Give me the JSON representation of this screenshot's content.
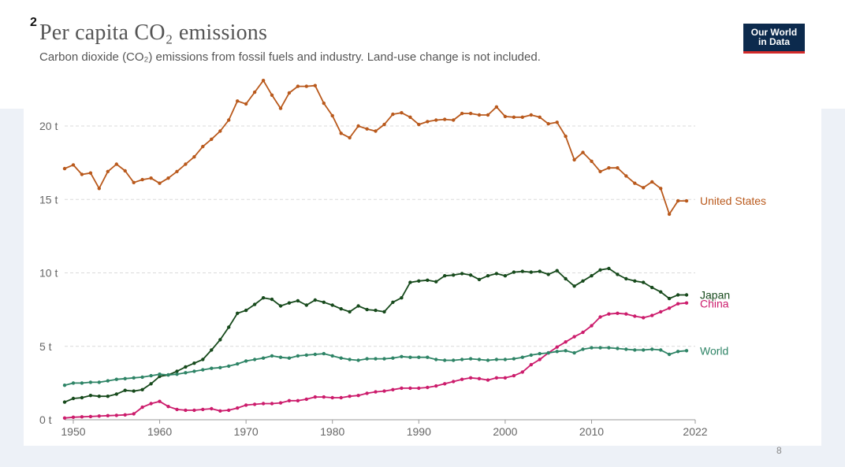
{
  "slide": {
    "number": "2",
    "page": "8"
  },
  "header": {
    "title": "Per capita CO₂ emissions",
    "subtitle": "Carbon dioxide (CO₂) emissions from fossil fuels and industry. Land-use change is not included."
  },
  "logo": {
    "line1": "Our World",
    "line2": "in Data",
    "background": "#0c2a4d",
    "accent": "#d42b2b"
  },
  "chart_data": {
    "type": "line",
    "title": "Per capita CO₂ emissions",
    "subtitle": "Carbon dioxide (CO₂) emissions from fossil fuels and industry. Land-use change is not included.",
    "xlim": [
      1949,
      2022
    ],
    "ylim": [
      0,
      23.5
    ],
    "x_ticks": [
      1950,
      1960,
      1970,
      1980,
      1990,
      2000,
      2010,
      2022
    ],
    "y_ticks": [
      {
        "value": 0,
        "label": "0 t"
      },
      {
        "value": 5,
        "label": "5 t"
      },
      {
        "value": 10,
        "label": "10 t"
      },
      {
        "value": 15,
        "label": "15 t"
      },
      {
        "value": 20,
        "label": "20 t"
      }
    ],
    "grid": true,
    "legend": "end-of-line labels",
    "series": [
      {
        "name": "United States",
        "color": "#b9591c",
        "label_value": 14.9,
        "start_year": 1949,
        "values": [
          17.1,
          17.35,
          16.7,
          16.8,
          15.75,
          16.9,
          17.4,
          16.95,
          16.15,
          16.35,
          16.45,
          16.1,
          16.45,
          16.9,
          17.4,
          17.9,
          18.6,
          19.1,
          19.65,
          20.4,
          21.7,
          21.5,
          22.3,
          23.1,
          22.1,
          21.2,
          22.25,
          22.7,
          22.7,
          22.75,
          21.55,
          20.7,
          19.5,
          19.2,
          20.0,
          19.8,
          19.65,
          20.1,
          20.8,
          20.9,
          20.6,
          20.1,
          20.3,
          20.4,
          20.45,
          20.4,
          20.85,
          20.85,
          20.75,
          20.75,
          21.3,
          20.65,
          20.6,
          20.6,
          20.75,
          20.6,
          20.15,
          20.25,
          19.3,
          17.7,
          18.2,
          17.6,
          16.9,
          17.15,
          17.15,
          16.6,
          16.1,
          15.8,
          16.2,
          15.75,
          14.0,
          14.9,
          14.9
        ]
      },
      {
        "name": "Japan",
        "color": "#174a1c",
        "label_value": 8.5,
        "start_year": 1949,
        "values": [
          1.2,
          1.45,
          1.5,
          1.65,
          1.6,
          1.6,
          1.75,
          2.0,
          1.95,
          2.05,
          2.45,
          2.95,
          3.05,
          3.3,
          3.6,
          3.85,
          4.1,
          4.75,
          5.45,
          6.3,
          7.25,
          7.45,
          7.85,
          8.3,
          8.2,
          7.75,
          7.95,
          8.1,
          7.8,
          8.15,
          8.0,
          7.8,
          7.55,
          7.35,
          7.75,
          7.5,
          7.45,
          7.35,
          8.0,
          8.3,
          9.35,
          9.45,
          9.5,
          9.4,
          9.8,
          9.85,
          9.95,
          9.85,
          9.55,
          9.8,
          9.95,
          9.8,
          10.05,
          10.1,
          10.05,
          10.1,
          9.9,
          10.15,
          9.6,
          9.1,
          9.45,
          9.8,
          10.2,
          10.3,
          9.9,
          9.6,
          9.45,
          9.35,
          9.0,
          8.7,
          8.25,
          8.5,
          8.5
        ]
      },
      {
        "name": "China",
        "color": "#cc1c6c",
        "label_value": 7.9,
        "start_year": 1949,
        "values": [
          0.12,
          0.17,
          0.2,
          0.22,
          0.25,
          0.28,
          0.3,
          0.33,
          0.4,
          0.85,
          1.1,
          1.25,
          0.9,
          0.7,
          0.65,
          0.65,
          0.7,
          0.75,
          0.6,
          0.65,
          0.8,
          1.0,
          1.05,
          1.1,
          1.1,
          1.15,
          1.3,
          1.3,
          1.4,
          1.55,
          1.55,
          1.5,
          1.5,
          1.6,
          1.65,
          1.8,
          1.9,
          1.95,
          2.05,
          2.15,
          2.15,
          2.15,
          2.2,
          2.3,
          2.45,
          2.6,
          2.75,
          2.85,
          2.8,
          2.7,
          2.85,
          2.85,
          3.0,
          3.25,
          3.75,
          4.1,
          4.55,
          4.95,
          5.3,
          5.65,
          5.95,
          6.4,
          7.0,
          7.2,
          7.25,
          7.2,
          7.05,
          6.95,
          7.1,
          7.35,
          7.6,
          7.9,
          7.95
        ]
      },
      {
        "name": "World",
        "color": "#2e8466",
        "label_value": 4.7,
        "start_year": 1949,
        "values": [
          2.35,
          2.5,
          2.5,
          2.55,
          2.55,
          2.65,
          2.75,
          2.8,
          2.85,
          2.9,
          3.0,
          3.1,
          3.05,
          3.1,
          3.2,
          3.3,
          3.4,
          3.5,
          3.55,
          3.65,
          3.8,
          4.0,
          4.1,
          4.2,
          4.35,
          4.25,
          4.2,
          4.35,
          4.4,
          4.45,
          4.5,
          4.35,
          4.2,
          4.1,
          4.05,
          4.15,
          4.15,
          4.15,
          4.2,
          4.3,
          4.25,
          4.25,
          4.25,
          4.1,
          4.05,
          4.05,
          4.1,
          4.15,
          4.1,
          4.05,
          4.1,
          4.1,
          4.15,
          4.25,
          4.4,
          4.5,
          4.55,
          4.65,
          4.7,
          4.55,
          4.8,
          4.9,
          4.9,
          4.9,
          4.85,
          4.8,
          4.75,
          4.75,
          4.8,
          4.75,
          4.45,
          4.65,
          4.7
        ]
      }
    ]
  }
}
